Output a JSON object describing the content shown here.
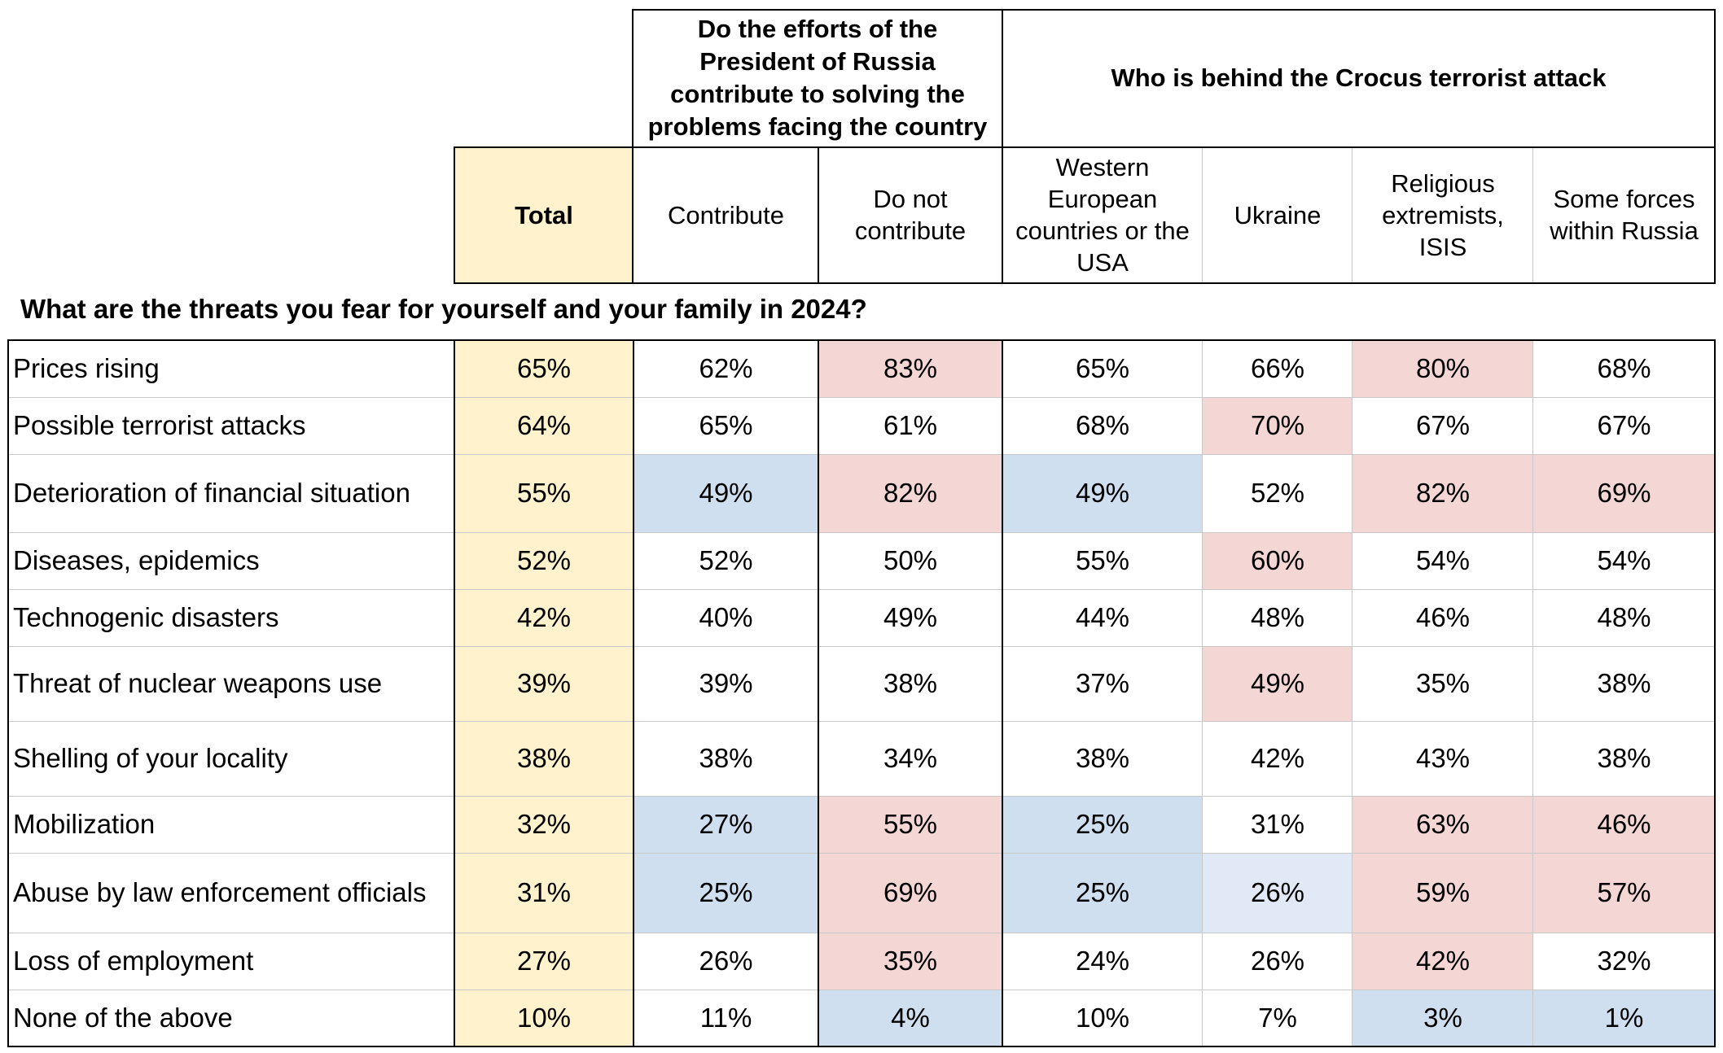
{
  "header": {
    "group1_label": "Do the efforts of the President of Russia contribute to solving the problems facing the country",
    "group2_label": "Who is behind the Crocus terrorist attack",
    "columns": [
      "Total",
      "Contribute",
      "Do not contribute",
      "Western European countries or the USA",
      "Ukraine",
      "Religious extremists, ISIS",
      "Some forces within Russia"
    ]
  },
  "question": "What are the threats you fear for yourself and your family in 2024?",
  "colors": {
    "total_fill": "#fff2cc",
    "high_fill": "#f4d7d4",
    "low_fill": "#cfdff0",
    "slightly_low_fill": "#e1e9f7",
    "border": "#000000",
    "grid": "#c8c8c8"
  },
  "chart_data": {
    "type": "table",
    "title": "What are the threats you fear for yourself and your family in 2024?",
    "columns": [
      "Total",
      "Contribute",
      "Do not contribute",
      "Western European countries or the USA",
      "Ukraine",
      "Religious extremists, ISIS",
      "Some forces within Russia"
    ],
    "column_groups": [
      {
        "name": "Do the efforts of the President of Russia contribute to solving the problems facing the country",
        "columns": [
          "Contribute",
          "Do not contribute"
        ]
      },
      {
        "name": "Who is behind the Crocus terrorist attack",
        "columns": [
          "Western European countries or the USA",
          "Ukraine",
          "Religious extremists, ISIS",
          "Some forces within Russia"
        ]
      }
    ],
    "rows": [
      {
        "label": "Prices rising",
        "values": [
          "65%",
          "62%",
          "83%",
          "65%",
          "66%",
          "80%",
          "68%"
        ],
        "highlight": [
          "t",
          "",
          "h",
          "",
          "",
          "h",
          ""
        ]
      },
      {
        "label": "Possible terrorist attacks",
        "values": [
          "64%",
          "65%",
          "61%",
          "68%",
          "70%",
          "67%",
          "67%"
        ],
        "highlight": [
          "t",
          "",
          "",
          "",
          "h",
          "",
          ""
        ]
      },
      {
        "label": "Deterioration of financial situation",
        "values": [
          "55%",
          "49%",
          "82%",
          "49%",
          "52%",
          "82%",
          "69%"
        ],
        "highlight": [
          "t",
          "l",
          "h",
          "l",
          "",
          "h",
          "h"
        ]
      },
      {
        "label": "Diseases, epidemics",
        "values": [
          "52%",
          "52%",
          "50%",
          "55%",
          "60%",
          "54%",
          "54%"
        ],
        "highlight": [
          "t",
          "",
          "",
          "",
          "h",
          "",
          ""
        ]
      },
      {
        "label": "Technogenic disasters",
        "values": [
          "42%",
          "40%",
          "49%",
          "44%",
          "48%",
          "46%",
          "48%"
        ],
        "highlight": [
          "t",
          "",
          "",
          "",
          "",
          "",
          ""
        ]
      },
      {
        "label": "Threat of nuclear weapons use",
        "values": [
          "39%",
          "39%",
          "38%",
          "37%",
          "49%",
          "35%",
          "38%"
        ],
        "highlight": [
          "t",
          "",
          "",
          "",
          "h",
          "",
          ""
        ]
      },
      {
        "label": "Shelling of your locality",
        "values": [
          "38%",
          "38%",
          "34%",
          "38%",
          "42%",
          "43%",
          "38%"
        ],
        "highlight": [
          "t",
          "",
          "",
          "",
          "",
          "",
          ""
        ]
      },
      {
        "label": "Mobilization",
        "values": [
          "32%",
          "27%",
          "55%",
          "25%",
          "31%",
          "63%",
          "46%"
        ],
        "highlight": [
          "t",
          "l",
          "h",
          "l",
          "",
          "h",
          "h"
        ]
      },
      {
        "label": "Abuse by law enforcement officials",
        "values": [
          "31%",
          "25%",
          "69%",
          "25%",
          "26%",
          "59%",
          "57%"
        ],
        "highlight": [
          "t",
          "l",
          "h",
          "l",
          "s",
          "h",
          "h"
        ]
      },
      {
        "label": "Loss of employment",
        "values": [
          "27%",
          "26%",
          "35%",
          "24%",
          "26%",
          "42%",
          "32%"
        ],
        "highlight": [
          "t",
          "",
          "h",
          "",
          "",
          "h",
          ""
        ]
      },
      {
        "label": "None of the above",
        "values": [
          "10%",
          "11%",
          "4%",
          "10%",
          "7%",
          "3%",
          "1%"
        ],
        "highlight": [
          "t",
          "",
          "l",
          "",
          "",
          "l",
          "l"
        ]
      }
    ]
  }
}
